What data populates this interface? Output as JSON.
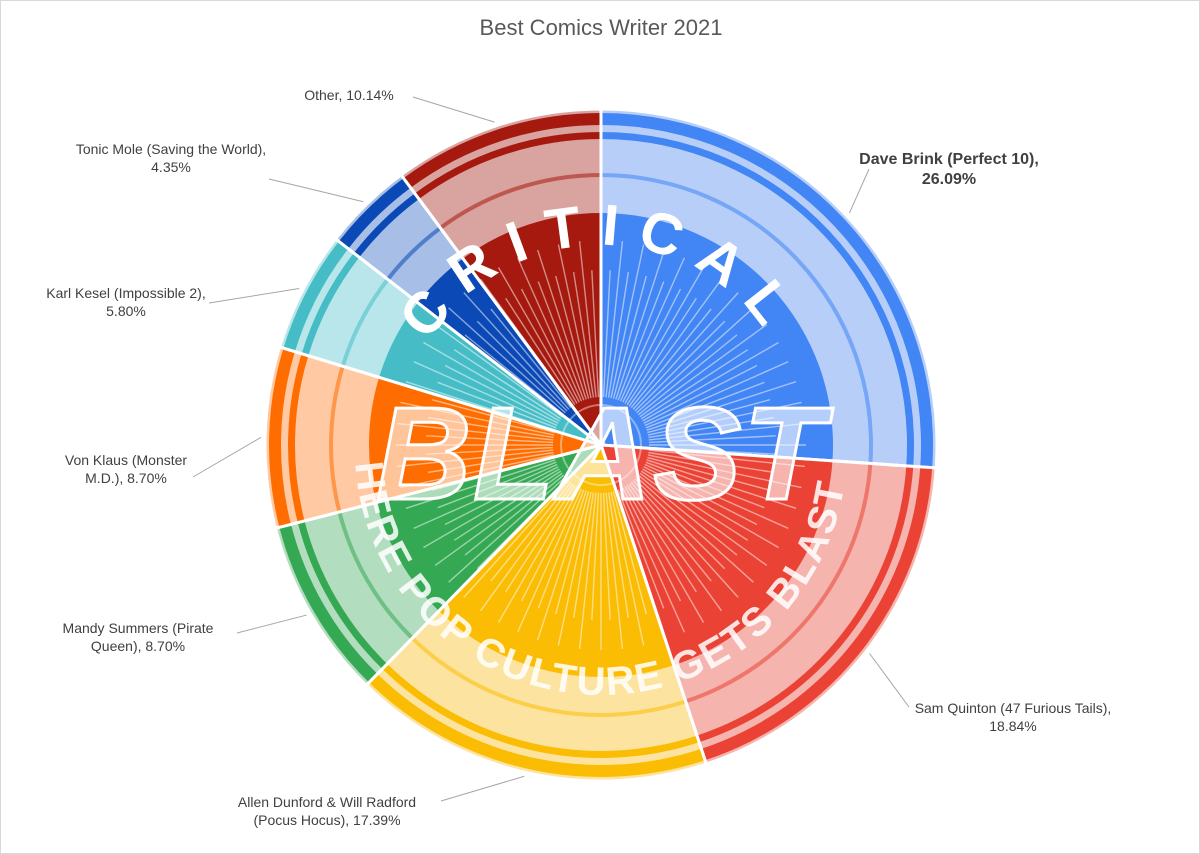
{
  "chart_data": {
    "type": "pie",
    "title": "Best Comics Writer 2021",
    "slices": [
      {
        "name": "Dave Brink (Perfect 10)",
        "value": 26.09,
        "label_lines": [
          "Dave Brink (Perfect 10),",
          "26.09%"
        ],
        "color": "#4285F4",
        "light": "#B7CFF8",
        "bold": true
      },
      {
        "name": "Sam Quinton (47 Furious Tails)",
        "value": 18.84,
        "label_lines": [
          "Sam Quinton (47 Furious Tails),",
          "18.84%"
        ],
        "color": "#EA4335",
        "light": "#F5B4AE",
        "bold": false
      },
      {
        "name": "Allen Dunford & Will Radford (Pocus Hocus)",
        "value": 17.39,
        "label_lines": [
          "Allen Dunford & Will Radford",
          "(Pocus Hocus), 17.39%"
        ],
        "color": "#FBBC04",
        "light": "#FCE4A0",
        "bold": false
      },
      {
        "name": "Mandy Summers (Pirate Queen)",
        "value": 8.7,
        "label_lines": [
          "Mandy Summers (Pirate",
          "Queen), 8.70%"
        ],
        "color": "#34A853",
        "light": "#B3DDBF",
        "bold": false
      },
      {
        "name": "Von Klaus (Monster M.D.)",
        "value": 8.7,
        "label_lines": [
          "Von Klaus (Monster",
          "M.D.), 8.70%"
        ],
        "color": "#FF6D01",
        "light": "#FFC9A3",
        "bold": false
      },
      {
        "name": "Karl Kesel (Impossible 2)",
        "value": 5.8,
        "label_lines": [
          "Karl Kesel (Impossible 2),",
          "5.80%"
        ],
        "color": "#46BDC6",
        "light": "#B8E6EA",
        "bold": false
      },
      {
        "name": "Tonic Mole (Saving the World)",
        "value": 4.35,
        "label_lines": [
          "Tonic Mole (Saving the World),",
          "4.35%"
        ],
        "color": "#0B49B6",
        "light": "#A7BFE6",
        "bold": false
      },
      {
        "name": "Other",
        "value": 10.14,
        "label_lines": [
          "Other, 10.14%"
        ],
        "color": "#A5190F",
        "light": "#D9A3A0",
        "bold": false
      }
    ]
  },
  "logo": {
    "top_text": "CRITICAL",
    "middle_text": "BLAST",
    "bottom_text": "WHERE POP CULTURE GETS BLASTED"
  }
}
